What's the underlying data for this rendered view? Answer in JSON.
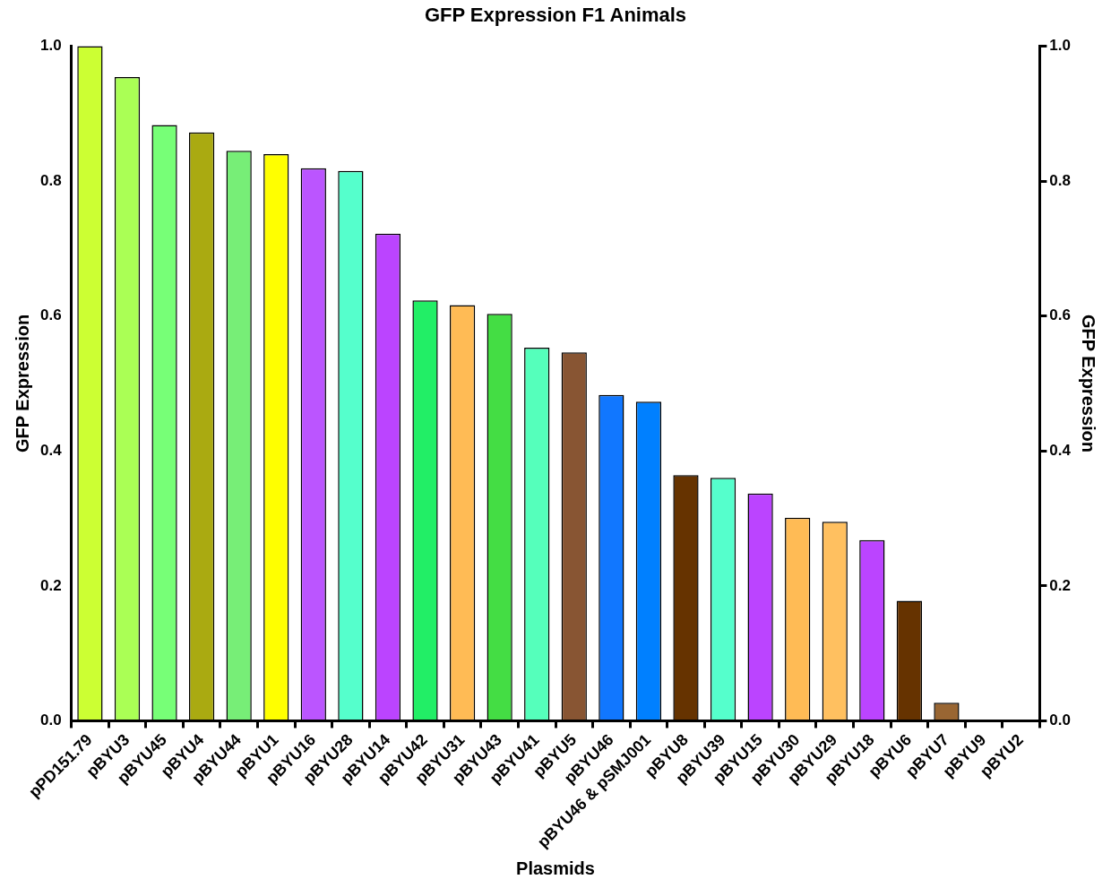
{
  "chart_data": {
    "type": "bar",
    "title": "GFP Expression F1 Animals",
    "xlabel": "Plasmids",
    "ylabel": "GFP Expression",
    "y2label": "GFP Expression",
    "categories": [
      "pPD151.79",
      "pBYU3",
      "pBYU45",
      "pBYU4",
      "pBYU44",
      "pBYU1",
      "pBYU16",
      "pBYU28",
      "pBYU14",
      "pBYU42",
      "pBYU31",
      "pBYU43",
      "pBYU41",
      "pBYU5",
      "pBYU46",
      "pBYU46 & pSMJ001",
      "pBYU8",
      "pBYU39",
      "pBYU15",
      "pBYU30",
      "pBYU29",
      "pBYU18",
      "pBYU6",
      "pBYU7",
      "pBYU9",
      "pBYU2"
    ],
    "values": [
      1.0,
      0.954,
      0.883,
      0.872,
      0.845,
      0.84,
      0.819,
      0.815,
      0.722,
      0.623,
      0.616,
      0.603,
      0.553,
      0.546,
      0.483,
      0.473,
      0.364,
      0.36,
      0.337,
      0.301,
      0.295,
      0.268,
      0.178,
      0.027,
      0,
      0
    ],
    "colors": [
      "#ccff33",
      "#aaff55",
      "#77ff77",
      "#aaaa11",
      "#77ee77",
      "#ffff00",
      "#bb55ff",
      "#55ffcc",
      "#bb44ff",
      "#22ee66",
      "#ffbb55",
      "#44dd44",
      "#55ffbb",
      "#885533",
      "#1177ff",
      "#0080ff",
      "#663300",
      "#55ffcc",
      "#bb44ff",
      "#ffbb55",
      "#ffc060",
      "#bb44ff",
      "#663300",
      "#996633",
      "#000000",
      "#000000"
    ],
    "ylim": [
      0,
      1.0
    ],
    "yticks": [
      {
        "value": 0,
        "label": "0.0"
      },
      {
        "value": 0.2,
        "label": "0.2"
      },
      {
        "value": 0.4,
        "label": "0.4"
      },
      {
        "value": 0.6,
        "label": "0.6"
      },
      {
        "value": 0.8,
        "label": "0.8"
      },
      {
        "value": 1.0,
        "label": "1.0"
      }
    ],
    "y2lim": [
      0,
      1.0
    ],
    "y2ticks": [
      {
        "value": 0,
        "label": "0.0"
      },
      {
        "value": 0.2,
        "label": "0.2"
      },
      {
        "value": 0.4,
        "label": "0.4"
      },
      {
        "value": 0.6,
        "label": "0.6"
      },
      {
        "value": 0.8,
        "label": "0.8"
      },
      {
        "value": 1.0,
        "label": "1.0"
      }
    ],
    "grid": false,
    "legend": false
  }
}
